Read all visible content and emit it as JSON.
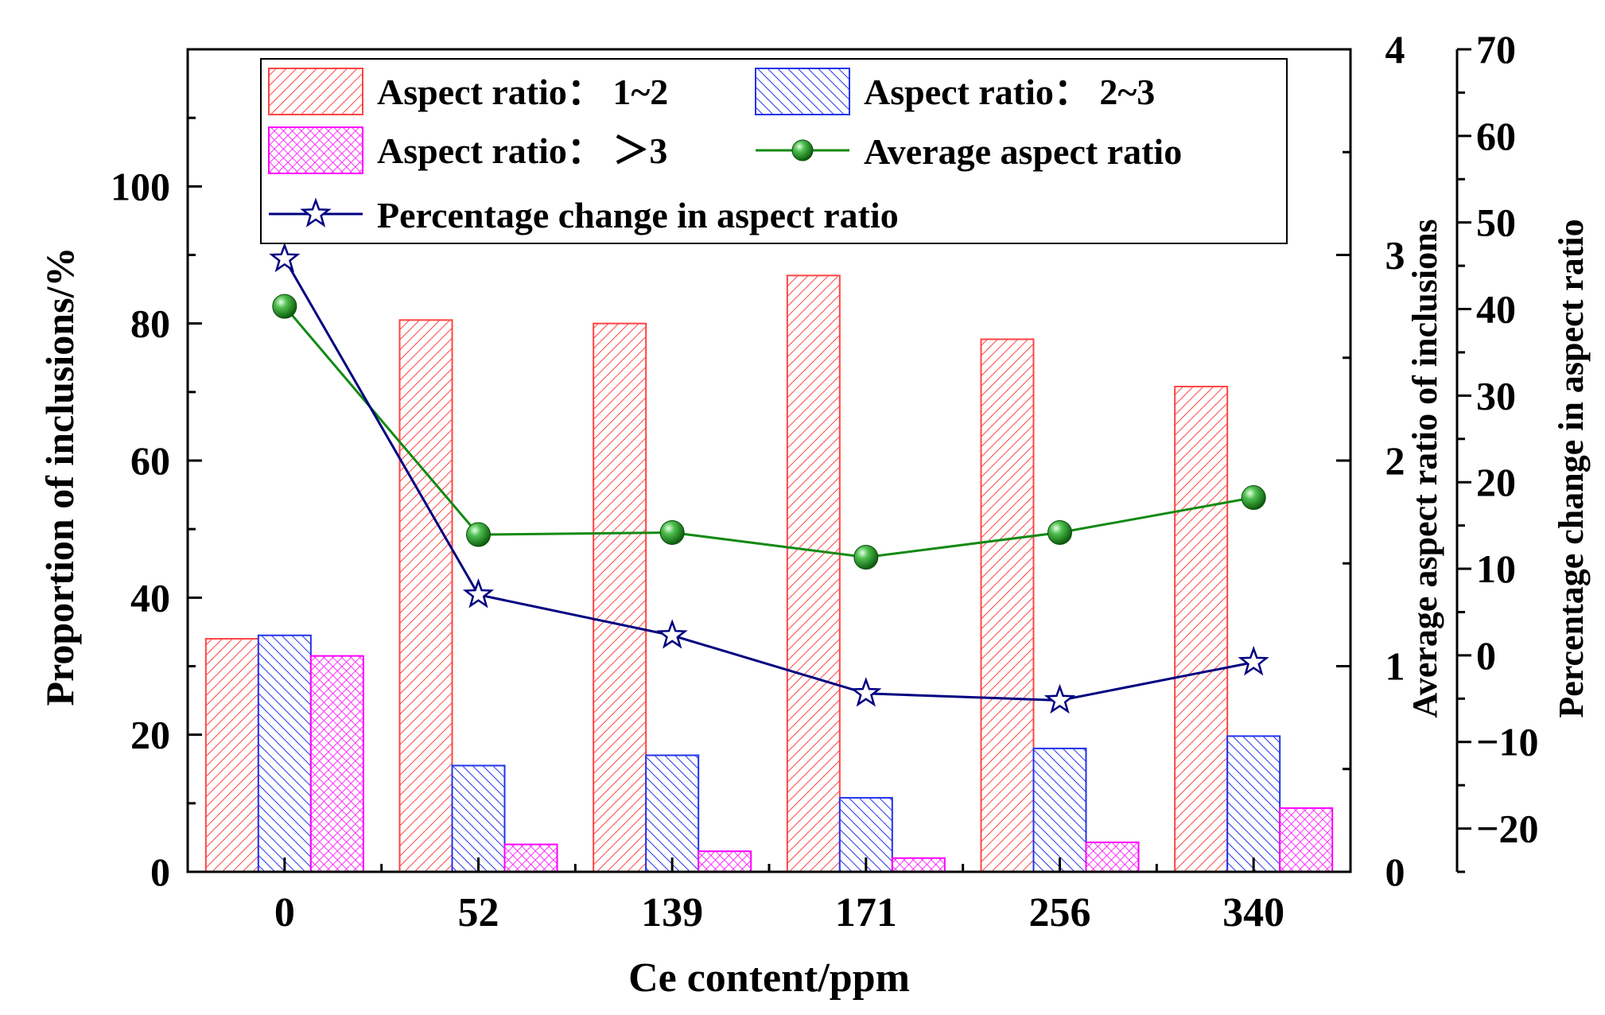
{
  "chart_data": {
    "type": "bar",
    "categories": [
      "0",
      "52",
      "139",
      "171",
      "256",
      "340"
    ],
    "xlabel": "Ce content/ppm",
    "ylabel": "Proportion of inclusions/%",
    "ylabel_right": "Average aspect ratio of inclusions",
    "ylabel_right2": "Percentage change in aspect ratio",
    "ylim": [
      0,
      120
    ],
    "ylim_right": [
      0,
      4
    ],
    "ylim_right2": [
      -25,
      70
    ],
    "yticks": [
      0,
      20,
      40,
      60,
      80,
      100
    ],
    "yticks_right": [
      0,
      1,
      2,
      3,
      4
    ],
    "yticks_right2": [
      -20,
      -10,
      0,
      10,
      20,
      30,
      40,
      50,
      60,
      70
    ],
    "grid": false,
    "legend_position": "top",
    "colors": {
      "ratio_1_2": "#ff4444",
      "ratio_2_3": "#2233ee",
      "ratio_gt3": "#ff00ff",
      "average": "#138a13",
      "average_marker": "#1a8a1a",
      "percentage": "#000080"
    },
    "series": [
      {
        "name": "Aspect ratio： 1~2",
        "kind": "bar",
        "axis": "left",
        "pattern": "hatch-forward",
        "values": [
          34.0,
          80.5,
          80.0,
          87.0,
          77.7,
          70.8
        ]
      },
      {
        "name": "Aspect ratio： 2~3",
        "kind": "bar",
        "axis": "left",
        "pattern": "hatch-back",
        "values": [
          34.5,
          15.5,
          17.0,
          10.8,
          18.0,
          19.8
        ]
      },
      {
        "name": "Aspect ratio： ＞3",
        "kind": "bar",
        "axis": "left",
        "pattern": "crosshatch",
        "values": [
          31.5,
          4.0,
          3.0,
          2.0,
          4.3,
          9.3
        ]
      },
      {
        "name": "Average aspect ratio",
        "kind": "line",
        "axis": "right",
        "marker": "sphere",
        "values": [
          2.75,
          1.64,
          1.65,
          1.53,
          1.65,
          1.82
        ]
      },
      {
        "name": "Percentage change in aspect ratio",
        "kind": "line",
        "axis": "right2",
        "marker": "star",
        "values": [
          45.8,
          7.0,
          2.3,
          -4.4,
          -5.2,
          -0.8
        ]
      }
    ]
  }
}
